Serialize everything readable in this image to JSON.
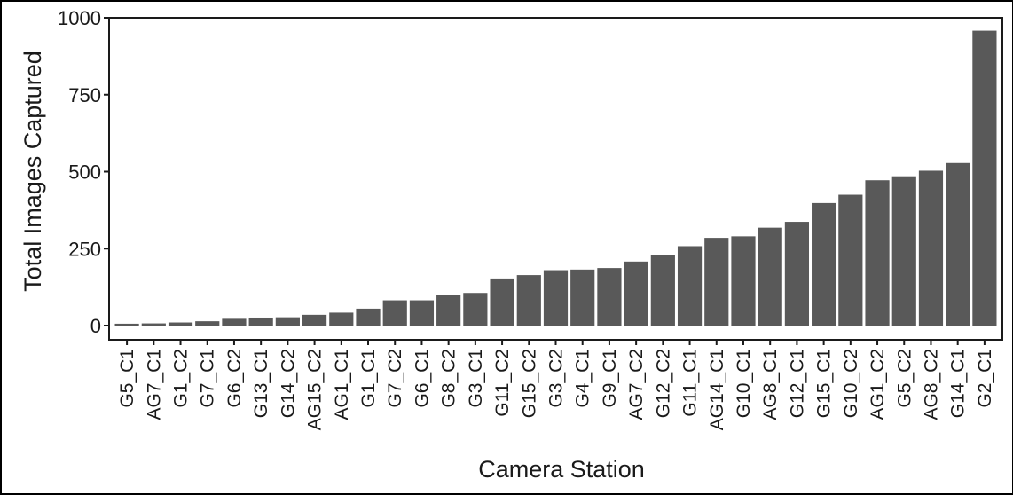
{
  "chart_data": {
    "type": "bar",
    "xlabel": "Camera Station",
    "ylabel": "Total Images Captured",
    "ylim": [
      0,
      1000
    ],
    "yticks": [
      0,
      250,
      500,
      750,
      1000
    ],
    "grid": false,
    "bar_color": "#595959",
    "categories": [
      "G5_C1",
      "AG7_C1",
      "G1_C2",
      "G7_C1",
      "G6_C2",
      "G13_C1",
      "G14_C2",
      "AG15_C2",
      "AG1_C1",
      "G1_C1",
      "G7_C2",
      "G6_C1",
      "G8_C2",
      "G3_C1",
      "G11_C2",
      "G15_C2",
      "G3_C2",
      "G4_C1",
      "G9_C1",
      "AG7_C2",
      "G12_C2",
      "G11_C1",
      "AG14_C1",
      "G10_C1",
      "AG8_C1",
      "G12_C1",
      "G15_C1",
      "G10_C2",
      "AG1_C2",
      "G5_C2",
      "AG8_C2",
      "G14_C1",
      "G2_C1"
    ],
    "values": [
      6,
      7,
      10,
      14,
      22,
      26,
      27,
      35,
      42,
      55,
      82,
      82,
      98,
      106,
      153,
      164,
      180,
      182,
      187,
      208,
      230,
      258,
      285,
      290,
      318,
      337,
      398,
      425,
      472,
      485,
      503,
      528,
      958
    ]
  }
}
